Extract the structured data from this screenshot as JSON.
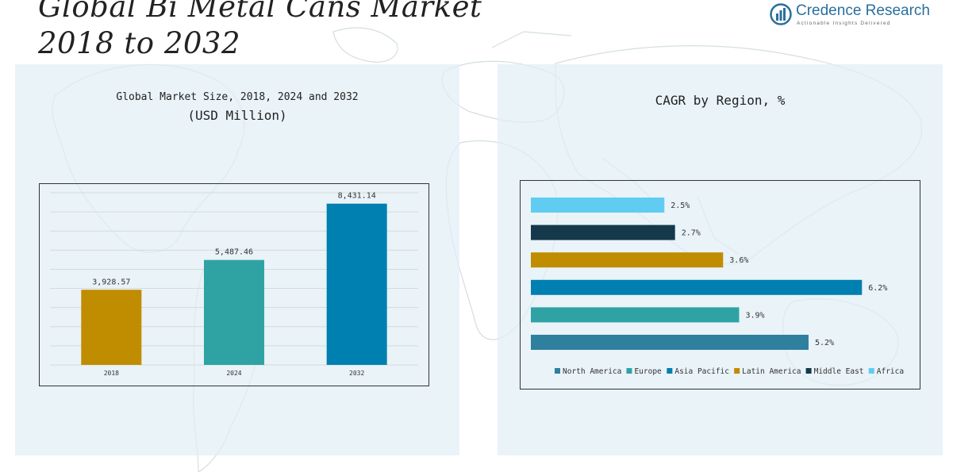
{
  "header": {
    "title_line1": "Global Bi Metal Cans Market",
    "title_line2": "2018 to 2032"
  },
  "logo": {
    "name": "Credence Research",
    "tagline": "Actionable Insights Delivered",
    "icon": "credence-logo-icon",
    "color": "#2a6f9e"
  },
  "chart_data": [
    {
      "type": "bar",
      "title": "Global Market Size, 2018, 2024 and 2032",
      "subtitle": "(USD Million)",
      "categories": [
        "2018",
        "2024",
        "2032"
      ],
      "values": [
        3928.57,
        5487.46,
        8431.14
      ],
      "value_labels": [
        "3,928.57",
        "5,487.46",
        "8,431.14"
      ],
      "colors": [
        "#c08c00",
        "#2fa3a3",
        "#0080b0"
      ],
      "ylim": [
        0,
        9000
      ],
      "grid": true,
      "legend": "none"
    },
    {
      "type": "bar",
      "orientation": "horizontal",
      "title": "CAGR by Region, %",
      "categories": [
        "Africa",
        "Middle East",
        "Latin America",
        "Asia Pacific",
        "Europe",
        "North America"
      ],
      "values": [
        2.5,
        2.7,
        3.6,
        6.2,
        3.9,
        5.2
      ],
      "value_labels": [
        "2.5%",
        "2.7%",
        "3.6%",
        "6.2%",
        "3.9%",
        "5.2%"
      ],
      "colors": [
        "#60ccf2",
        "#15394a",
        "#c08c00",
        "#0080b0",
        "#2fa3a3",
        "#2f7f9f"
      ],
      "xlim": [
        0,
        6.3
      ],
      "legend": "bottom",
      "legend_items": [
        {
          "name": "North America",
          "color": "#2f7f9f"
        },
        {
          "name": "Europe",
          "color": "#2fa3a3"
        },
        {
          "name": "Asia Pacific",
          "color": "#0080b0"
        },
        {
          "name": "Latin America",
          "color": "#c08c00"
        },
        {
          "name": "Middle East",
          "color": "#15394a"
        },
        {
          "name": "Africa",
          "color": "#60ccf2"
        }
      ]
    }
  ]
}
